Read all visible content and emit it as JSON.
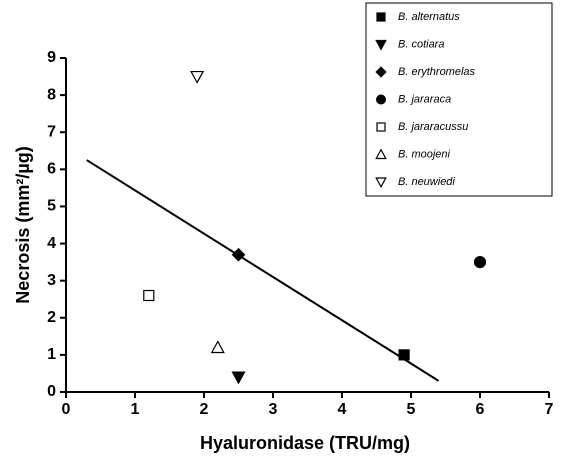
{
  "chart_data": {
    "type": "scatter",
    "x_label": "Hyaluronidase (TRU/mg)",
    "y_label": "Necrosis (mm²/µg)",
    "xlim": [
      0,
      7
    ],
    "xticks": [
      0,
      1,
      2,
      3,
      4,
      5,
      6,
      7
    ],
    "ylim": [
      0,
      9
    ],
    "yticks": [
      0,
      1,
      2,
      3,
      4,
      5,
      6,
      7,
      8,
      9
    ],
    "series": [
      {
        "name": "B. alternatus",
        "marker": "square",
        "color": "#000",
        "fill": "#000",
        "x": [
          4.9
        ],
        "values": [
          1.0
        ]
      },
      {
        "name": "B. cotiara",
        "marker": "triangle-down",
        "color": "#000",
        "fill": "#000",
        "x": [
          2.5
        ],
        "values": [
          0.4
        ]
      },
      {
        "name": "B. erythromelas",
        "marker": "diamond",
        "color": "#000",
        "fill": "#000",
        "x": [
          2.5
        ],
        "values": [
          3.7
        ]
      },
      {
        "name": "B. jararaca",
        "marker": "circle",
        "color": "#000",
        "fill": "#000",
        "x": [
          6.0
        ],
        "values": [
          3.5
        ]
      },
      {
        "name": "B. jararacussu",
        "marker": "square",
        "color": "#000",
        "fill": "#fff",
        "x": [
          1.2
        ],
        "values": [
          2.6
        ]
      },
      {
        "name": "B. moojeni",
        "marker": "triangle-up",
        "color": "#000",
        "fill": "#fff",
        "x": [
          2.2
        ],
        "values": [
          1.2
        ]
      },
      {
        "name": "B. neuwiedi",
        "marker": "triangle-down",
        "color": "#000",
        "fill": "#fff",
        "x": [
          1.9
        ],
        "values": [
          8.5
        ]
      }
    ],
    "fit_line": {
      "x": [
        0.3,
        5.4
      ],
      "values": [
        6.25,
        0.3
      ]
    }
  }
}
